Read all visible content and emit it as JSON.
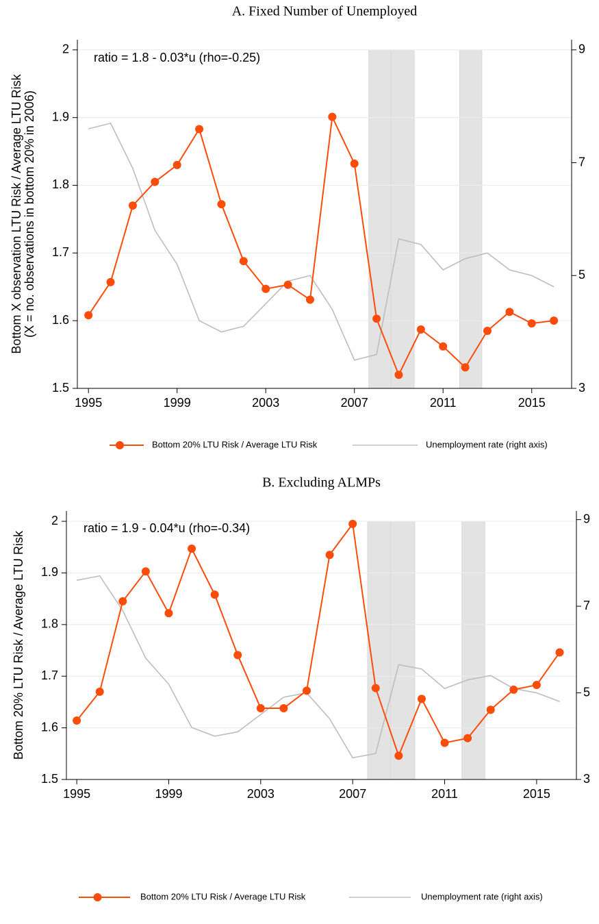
{
  "chart_data": [
    {
      "type": "line",
      "title": "A. Fixed Number of Unemployed",
      "ylabel": [
        "Bottom X observation LTU Risk / Average LTU Risk",
        "(X = no. observations in bottom 20% in 2006)"
      ],
      "annotation": "ratio = 1.8 - 0.03*u (rho=-0.25)",
      "x": [
        1995,
        1996,
        1997,
        1998,
        1999,
        2000,
        2001,
        2002,
        2003,
        2004,
        2005,
        2006,
        2007,
        2008,
        2009,
        2010,
        2011,
        2012,
        2013,
        2014,
        2015,
        2016
      ],
      "series": [
        {
          "name": "Bottom 20% LTU Risk / Average LTU Risk",
          "color": "#fc4c0a",
          "values": [
            1.608,
            1.657,
            1.77,
            1.805,
            1.83,
            1.883,
            1.772,
            1.688,
            1.647,
            1.653,
            1.631,
            1.901,
            1.832,
            1.603,
            1.52,
            1.587,
            1.562,
            1.531,
            1.585,
            1.613,
            1.596,
            1.6
          ]
        },
        {
          "name": "Unemployment rate (right axis)",
          "color": "#bdbdbd",
          "axis": "y2",
          "values": [
            7.6,
            7.7,
            6.9,
            5.8,
            5.2,
            4.2,
            4.0,
            4.1,
            4.5,
            4.9,
            5.0,
            4.4,
            3.5,
            3.6,
            5.65,
            5.55,
            5.1,
            5.3,
            5.4,
            5.1,
            5.0,
            4.8
          ]
        }
      ],
      "shaded_periods": [
        [
          2007.65,
          2008.65
        ],
        [
          2008.65,
          2009.7
        ],
        [
          2011.75,
          2012.75
        ]
      ],
      "shade_color": "#e3e3e3",
      "xlim": [
        1994.5,
        2016.8
      ],
      "xticks": [
        1995,
        1999,
        2003,
        2007,
        2011,
        2015
      ],
      "ylim": [
        1.5,
        2.015
      ],
      "yticks": [
        1.5,
        1.6,
        1.7,
        1.8,
        1.9,
        2
      ],
      "y2lim": [
        3,
        9.18
      ],
      "y2ticks": [
        3,
        5,
        7,
        9
      ],
      "grid": true
    },
    {
      "type": "line",
      "title": "B. Excluding ALMPs",
      "ylabel": [
        "Bottom 20% LTU Risk / Average LTU Risk"
      ],
      "annotation": "ratio = 1.9 - 0.04*u (rho=-0.34)",
      "x": [
        1995,
        1996,
        1997,
        1998,
        1999,
        2000,
        2001,
        2002,
        2003,
        2004,
        2005,
        2006,
        2007,
        2008,
        2009,
        2010,
        2011,
        2012,
        2013,
        2014,
        2015,
        2016
      ],
      "series": [
        {
          "name": "Bottom 20% LTU Risk / Average LTU Risk",
          "color": "#fc4c0a",
          "values": [
            1.614,
            1.67,
            1.845,
            1.903,
            1.822,
            1.947,
            1.858,
            1.741,
            1.638,
            1.638,
            1.672,
            1.935,
            1.995,
            1.677,
            1.546,
            1.656,
            1.571,
            1.58,
            1.635,
            1.674,
            1.683,
            1.746
          ]
        },
        {
          "name": "Unemployment rate (right axis)",
          "color": "#bdbdbd",
          "axis": "y2",
          "values": [
            7.6,
            7.7,
            6.9,
            5.8,
            5.2,
            4.2,
            4.0,
            4.1,
            4.5,
            4.9,
            5.0,
            4.4,
            3.5,
            3.6,
            5.65,
            5.55,
            5.1,
            5.3,
            5.4,
            5.1,
            5.0,
            4.8
          ]
        }
      ],
      "shaded_periods": [
        [
          2007.65,
          2008.65
        ],
        [
          2008.65,
          2009.7
        ],
        [
          2011.75,
          2012.75
        ]
      ],
      "shade_color": "#e3e3e3",
      "xlim": [
        1994.55,
        2016.73
      ],
      "xticks": [
        1995,
        1999,
        2003,
        2007,
        2011,
        2015
      ],
      "ylim": [
        1.5,
        2.02
      ],
      "yticks": [
        1.5,
        1.6,
        1.7,
        1.8,
        1.9,
        2
      ],
      "y2lim": [
        3,
        9.2
      ],
      "y2ticks": [
        3,
        5,
        7,
        9
      ],
      "grid": true
    }
  ]
}
